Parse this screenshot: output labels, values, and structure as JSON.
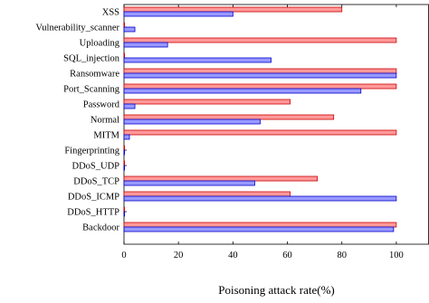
{
  "chart_data": {
    "type": "bar",
    "orientation": "horizontal",
    "xlabel": "Poisoning attack rate(%)",
    "ylabel": "",
    "xlim": [
      0,
      112
    ],
    "xticks": [
      0,
      20,
      40,
      60,
      80,
      100
    ],
    "grid": false,
    "legend": "none",
    "categories": [
      "XSS",
      "Vulnerability_scanner",
      "Uploading",
      "SQL_injection",
      "Ransomware",
      "Port_Scanning",
      "Password",
      "Normal",
      "MITM",
      "Fingerprinting",
      "DDoS_UDP",
      "DDoS_TCP",
      "DDoS_ICMP",
      "DDoS_HTTP",
      "Backdoor"
    ],
    "series": [
      {
        "color": "#ff9999",
        "stroke": "#cc0000",
        "values": [
          80,
          0,
          100,
          0,
          100,
          100,
          61,
          77,
          100,
          0,
          0,
          71,
          61,
          0,
          100
        ]
      },
      {
        "color": "#9999ff",
        "stroke": "#0000cc",
        "values": [
          40,
          4,
          16,
          54,
          100,
          87,
          4,
          50,
          2,
          0,
          0,
          48,
          100,
          0,
          99
        ]
      }
    ]
  }
}
